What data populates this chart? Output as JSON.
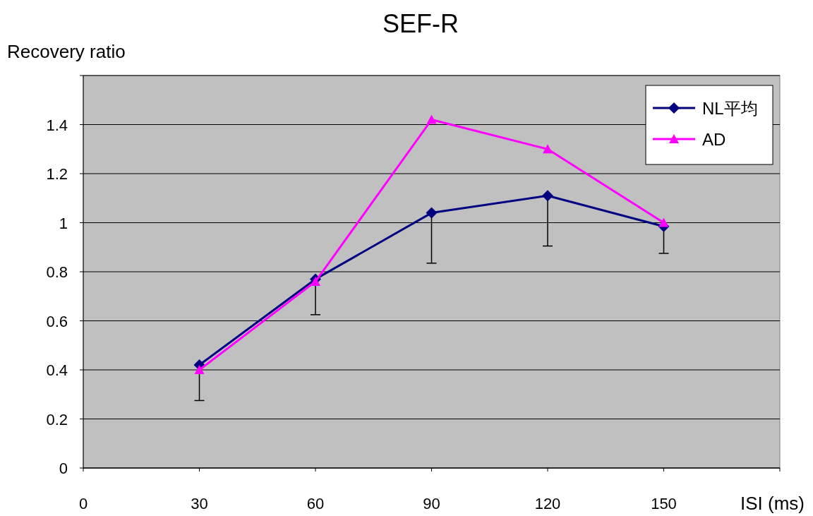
{
  "chart_data": {
    "type": "line",
    "title": "SEF-R",
    "ylabel": "Recovery ratio",
    "xlabel": "ISI (ms)",
    "x": [
      30,
      60,
      90,
      120,
      150
    ],
    "xlim": [
      0,
      180
    ],
    "xticks": [
      0,
      30,
      60,
      90,
      120,
      150,
      {
        "value": 180,
        "label": null
      }
    ],
    "ylim": [
      0,
      1.6
    ],
    "yticks": [
      0,
      0.2,
      0.4,
      0.6,
      0.8,
      1,
      1.2,
      1.4,
      {
        "value": 1.6,
        "label": null
      }
    ],
    "grid": "y",
    "legend": "top right",
    "series": [
      {
        "name": "NL平均",
        "color": "#000080",
        "marker": "diamond",
        "values": [
          0.42,
          0.77,
          1.04,
          1.11,
          0.985
        ],
        "errors": [
          [
            0.275,
            0.42
          ],
          [
            0.625,
            0.77
          ],
          [
            0.835,
            1.04
          ],
          [
            0.905,
            1.11
          ],
          [
            0.875,
            0.985
          ]
        ]
      },
      {
        "name": "AD",
        "color": "#ff00ff",
        "marker": "triangle",
        "values": [
          0.4,
          0.76,
          1.42,
          1.3,
          1.0
        ]
      }
    ]
  }
}
